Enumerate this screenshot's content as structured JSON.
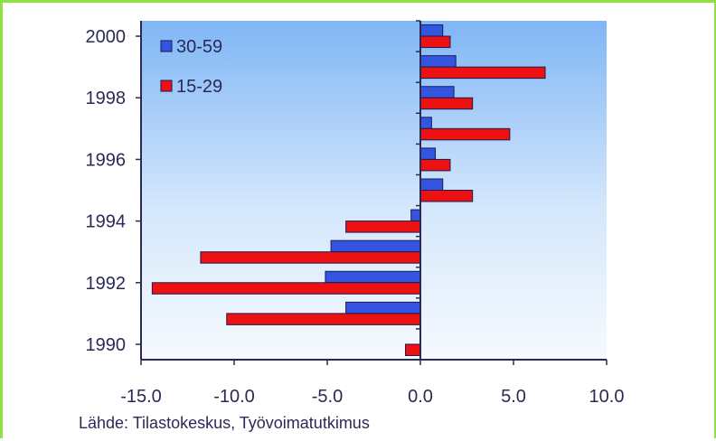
{
  "chart_data": {
    "type": "bar",
    "orientation": "horizontal",
    "categories": [
      "1990",
      "1991",
      "1992",
      "1993",
      "1994",
      "1995",
      "1996",
      "1997",
      "1998",
      "1999",
      "2000"
    ],
    "series": [
      {
        "name": "30-59",
        "color": "#3355e0",
        "values": [
          0.0,
          -4.0,
          -5.1,
          -4.8,
          -0.5,
          1.2,
          0.8,
          0.6,
          1.8,
          1.9,
          1.2
        ]
      },
      {
        "name": "15-29",
        "color": "#ee1111",
        "values": [
          -0.8,
          -10.4,
          -14.4,
          -11.8,
          -4.0,
          2.8,
          1.6,
          4.8,
          2.8,
          6.7,
          1.6
        ]
      }
    ],
    "xlim": [
      -15,
      10
    ],
    "xticks": [
      "-15.0",
      "-10.0",
      "-5.0",
      "0.0",
      "5.0",
      "10.0"
    ],
    "yticks": [
      "1990",
      "1992",
      "1994",
      "1996",
      "1998",
      "2000"
    ],
    "legend_placement": "top-left",
    "grid": false,
    "source": "Lähde: Tilastokeskus, Työvoimatutkimus"
  }
}
